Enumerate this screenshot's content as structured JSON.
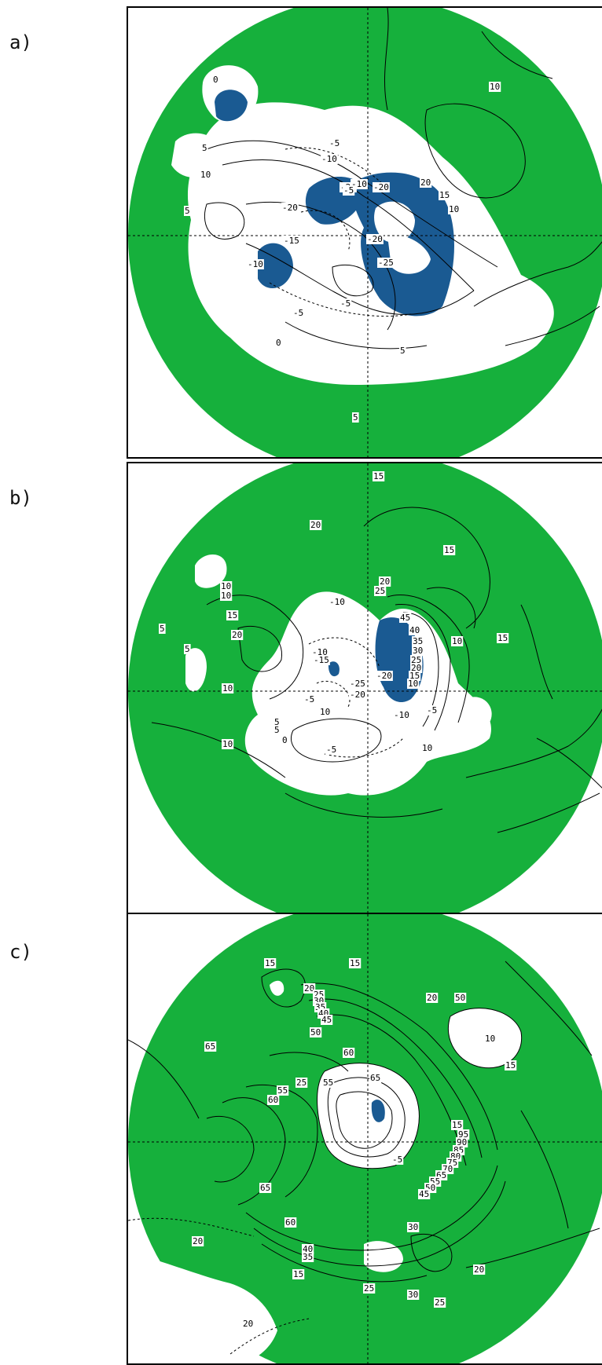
{
  "colors": {
    "positive_fill": "#16b03c",
    "strong_negative_fill": "#1a5a92",
    "background": "#ffffff",
    "contour": "#000000"
  },
  "panels": [
    {
      "label": "a)",
      "contour_labels": [
        "10",
        "5",
        "10",
        "5",
        "0",
        "-5",
        "-10",
        "-20",
        "-20",
        "-10",
        "-20",
        "-15",
        "-5",
        "-10",
        "-20",
        "-25",
        "-5",
        "20",
        "15",
        "10",
        "-5",
        "0",
        "5",
        "5"
      ]
    },
    {
      "label": "b)",
      "contour_labels": [
        "15",
        "20",
        "15",
        "10",
        "10",
        "15",
        "20",
        "5",
        "5",
        "10",
        "10",
        "20",
        "25",
        "45",
        "40",
        "35",
        "30",
        "25",
        "20",
        "15",
        "10",
        "-10",
        "-10",
        "-15",
        "-25",
        "-20",
        "-20",
        "-5",
        "5",
        "5",
        "0",
        "-5",
        "10",
        "10",
        "10",
        "15",
        "-10",
        "-5"
      ]
    },
    {
      "label": "c)",
      "contour_labels": [
        "15",
        "15",
        "20",
        "20",
        "25",
        "30",
        "35",
        "40",
        "45",
        "50",
        "60",
        "65",
        "25",
        "55",
        "55",
        "60",
        "65",
        "50",
        "15",
        "95",
        "90",
        "85",
        "80",
        "75",
        "70",
        "65",
        "55",
        "50",
        "45",
        "65",
        "60",
        "40",
        "35",
        "30",
        "20",
        "25",
        "30",
        "25",
        "20",
        "20",
        "15",
        "10",
        "15",
        "-5"
      ]
    }
  ]
}
